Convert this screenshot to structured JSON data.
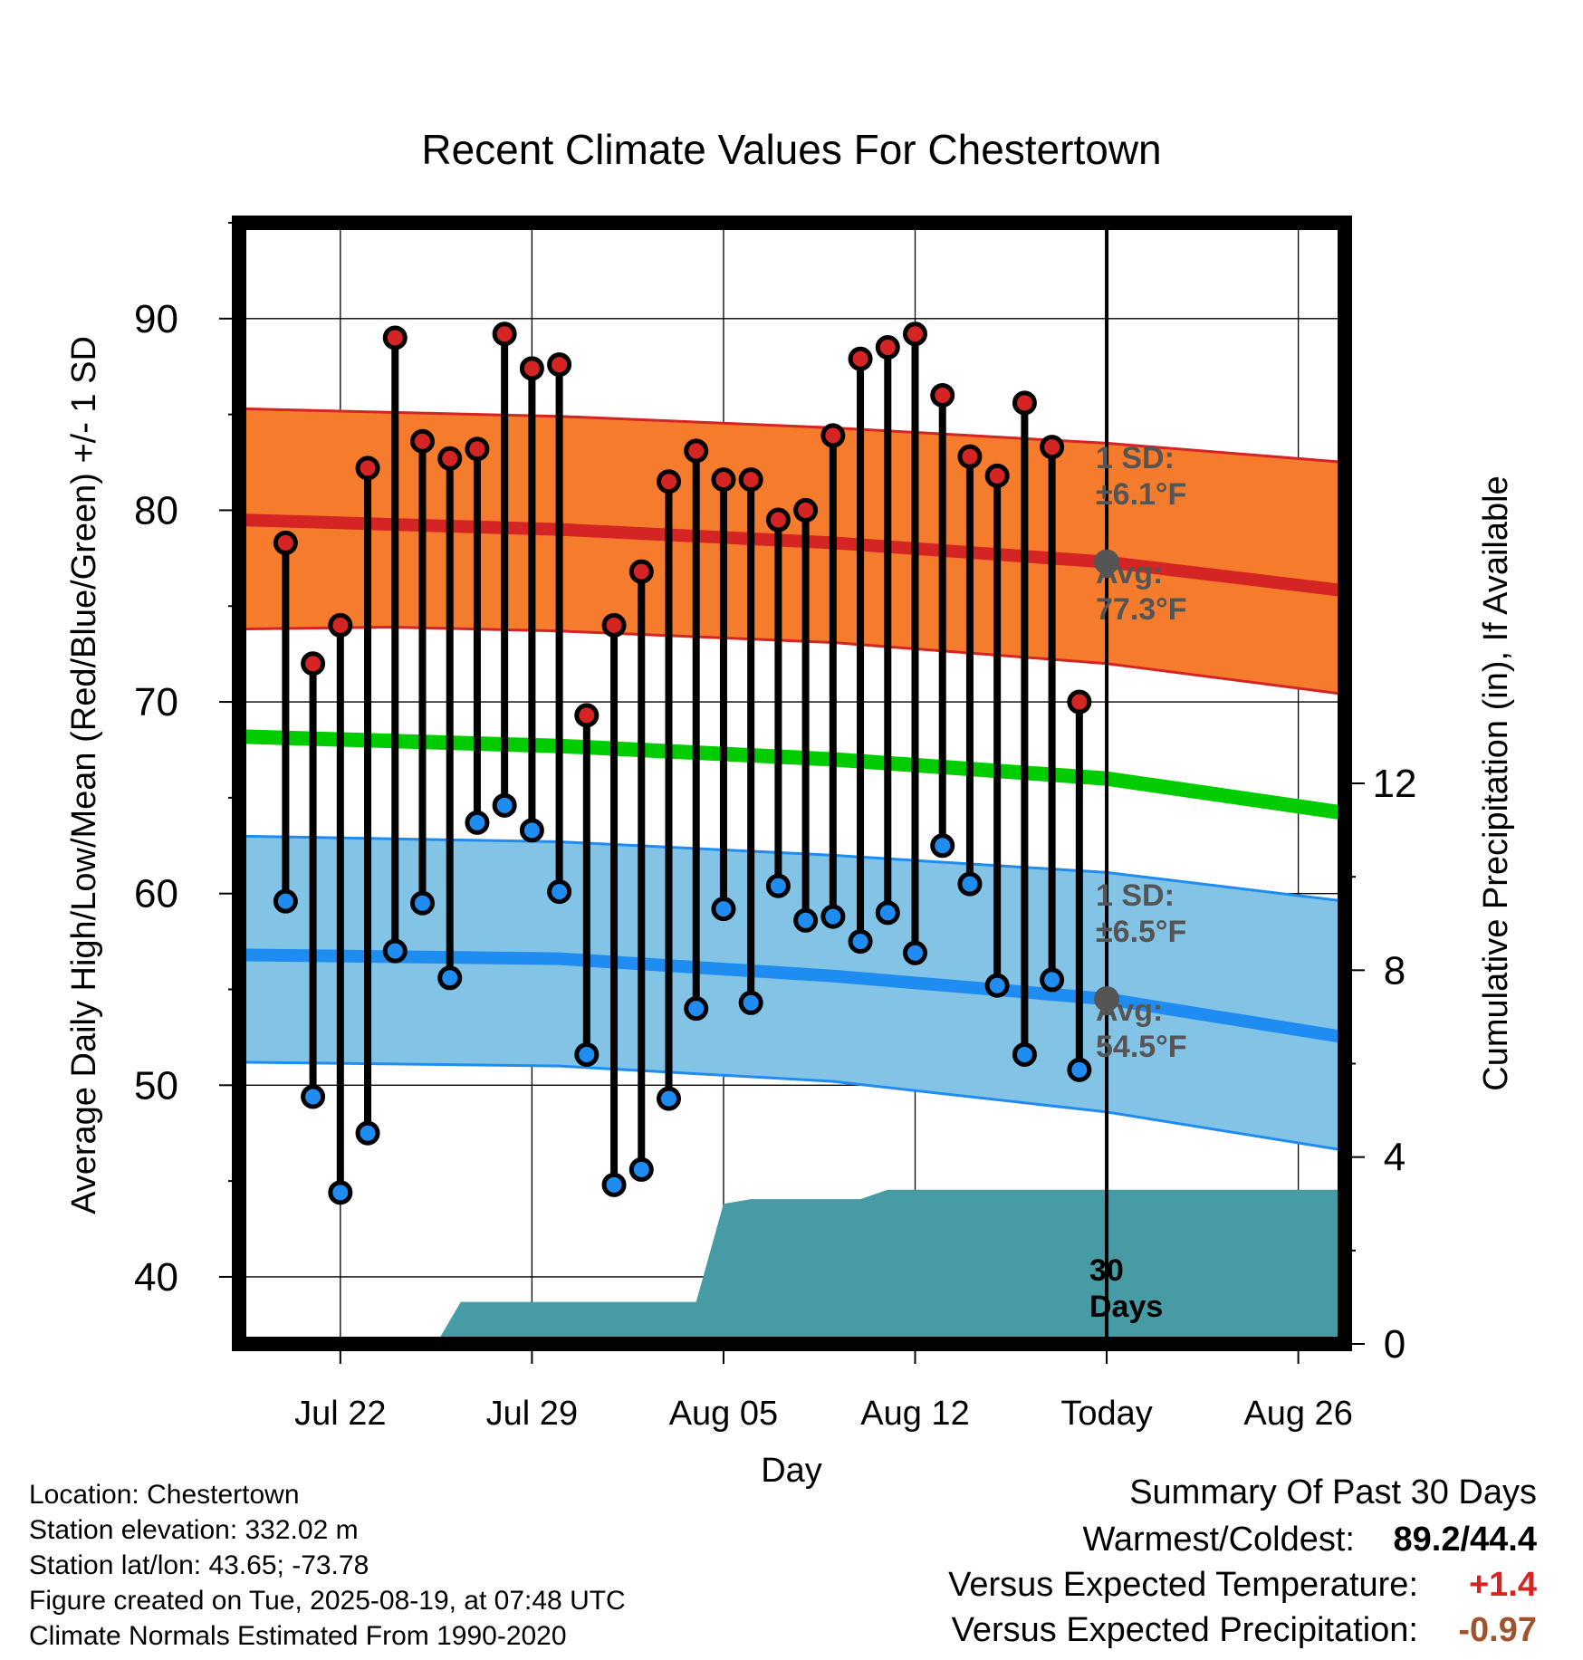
{
  "chart_data": {
    "type": "line",
    "title": "Recent Climate Values For Chestertown",
    "xlabel": "Day",
    "ylabel": "Average Daily High/Low/Mean (Red/Blue/Green) +/- 1 SD",
    "y2label": "Cumulative Precipitation (in), If Available",
    "y_ticks": [
      40,
      50,
      60,
      70,
      80,
      90
    ],
    "y2_ticks": [
      0,
      4,
      8,
      12
    ],
    "x_tick_labels": [
      "Jul 22",
      "Jul 29",
      "Aug 05",
      "Aug 12",
      "Today",
      "Aug 26"
    ],
    "x_range_day_index": [
      -1.7,
      38.7
    ],
    "ylim": [
      36.5,
      95
    ],
    "y2lim": [
      0,
      24
    ],
    "today_index": 30,
    "today_label": [
      "30",
      "Days"
    ],
    "colors": {
      "high": "#d42424",
      "low": "#1e8cf0",
      "mean": "#00cc00",
      "high_band": "#f57c2d",
      "low_band": "#82c3e6",
      "precip": "#479ba5",
      "annotation": "#555555"
    },
    "series": [
      {
        "name": "Daily High",
        "day_index": [
          0,
          1,
          2,
          3,
          4,
          5,
          6,
          7,
          8,
          9,
          10,
          11,
          12,
          13,
          14,
          15,
          16,
          17,
          18,
          19,
          20,
          21,
          22,
          23,
          24,
          25,
          26,
          27,
          28,
          29
        ],
        "values": [
          78.3,
          72.0,
          74.0,
          82.2,
          89.0,
          83.6,
          82.7,
          83.2,
          89.2,
          87.4,
          87.6,
          69.3,
          74.0,
          76.8,
          81.5,
          83.1,
          81.6,
          81.6,
          79.5,
          80.0,
          83.9,
          87.9,
          88.5,
          89.2,
          86.0,
          82.8,
          81.8,
          85.6,
          83.3,
          70.0
        ]
      },
      {
        "name": "Daily Low",
        "day_index": [
          0,
          1,
          2,
          3,
          4,
          5,
          6,
          7,
          8,
          9,
          10,
          11,
          12,
          13,
          14,
          15,
          16,
          17,
          18,
          19,
          20,
          21,
          22,
          23,
          24,
          25,
          26,
          27,
          28,
          29
        ],
        "values": [
          59.6,
          49.4,
          44.4,
          47.5,
          57.0,
          59.5,
          55.6,
          63.7,
          64.6,
          63.3,
          60.1,
          51.6,
          44.8,
          45.6,
          49.3,
          54.0,
          59.2,
          54.3,
          60.4,
          58.6,
          58.8,
          57.5,
          59.0,
          56.9,
          62.5,
          60.5,
          55.2,
          51.6,
          55.5,
          50.8
        ]
      },
      {
        "name": "Normal High",
        "day_index": [
          -1.7,
          10,
          20,
          30,
          38.7
        ],
        "values": [
          79.5,
          79.0,
          78.3,
          77.3,
          75.8
        ]
      },
      {
        "name": "Normal Low",
        "day_index": [
          -1.7,
          10,
          20,
          30,
          38.7
        ],
        "values": [
          56.8,
          56.6,
          55.7,
          54.5,
          52.5
        ]
      },
      {
        "name": "Normal Mean",
        "day_index": [
          -1.7,
          10,
          20,
          30,
          38.7
        ],
        "values": [
          68.2,
          67.7,
          67.0,
          66.0,
          64.2
        ]
      },
      {
        "name": "High +1 SD",
        "day_index": [
          -1.7,
          10,
          20,
          30,
          38.7
        ],
        "values": [
          85.3,
          84.9,
          84.3,
          83.5,
          82.5
        ]
      },
      {
        "name": "High -1 SD",
        "day_index": [
          -1.7,
          3.8,
          10,
          20,
          30,
          38.7
        ],
        "values": [
          73.8,
          73.9,
          73.7,
          73.1,
          72.0,
          70.4
        ]
      },
      {
        "name": "Low +1 SD",
        "day_index": [
          -1.7,
          10,
          20,
          30,
          38.7
        ],
        "values": [
          63.0,
          62.7,
          62.0,
          61.1,
          59.6
        ]
      },
      {
        "name": "Low -1 SD",
        "day_index": [
          -1.7,
          10,
          20,
          30,
          38.7
        ],
        "values": [
          51.2,
          51.0,
          50.2,
          48.6,
          46.6
        ]
      },
      {
        "name": "Cumulative Precipitation",
        "day_index": [
          5.5,
          6.4,
          10,
          15,
          16,
          17,
          21,
          22,
          38.7
        ],
        "values": [
          0,
          0.9,
          0.9,
          0.9,
          3.0,
          3.1,
          3.1,
          3.3,
          3.3
        ]
      }
    ],
    "annotations": {
      "high_sd": [
        "1 SD:",
        "±6.1°F"
      ],
      "high_avg": [
        "Avg:",
        "77.3°F"
      ],
      "low_sd": [
        "1 SD:",
        "±6.5°F"
      ],
      "low_avg": [
        "Avg:",
        "54.5°F"
      ]
    }
  },
  "footer": {
    "location": "Location: Chestertown",
    "elevation": "Station elevation: 332.02 m",
    "latlon": "Station lat/lon: 43.65; -73.78",
    "created": "Figure created on Tue, 2025-08-19, at 07:48 UTC",
    "normals": "Climate Normals Estimated From 1990-2020"
  },
  "summary": {
    "heading": "Summary Of Past 30 Days",
    "warm_cold_label": "Warmest/Coldest:",
    "warm_cold_value": "89.2/44.4",
    "temp_label": "Versus Expected Temperature:",
    "temp_value": "+1.4",
    "temp_color": "#d42424",
    "precip_label": "Versus Expected Precipitation:",
    "precip_value": "-0.97",
    "precip_color": "#a0522d"
  }
}
